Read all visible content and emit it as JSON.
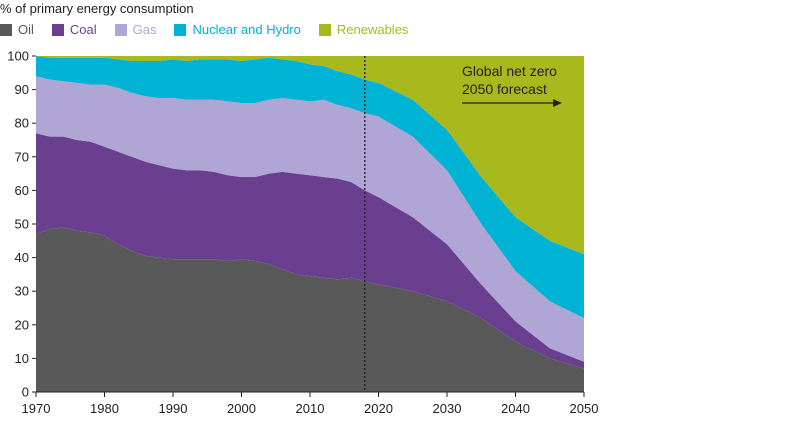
{
  "chart_data": {
    "type": "area",
    "stacked": true,
    "ylabel": "% of primary energy consumption",
    "xlim": [
      1970,
      2050
    ],
    "ylim": [
      0,
      100
    ],
    "xticks": [
      "1970",
      "1980",
      "1990",
      "2000",
      "2010",
      "2020",
      "2030",
      "2040",
      "2050"
    ],
    "yticks": [
      "0",
      "10",
      "20",
      "30",
      "40",
      "50",
      "60",
      "70",
      "80",
      "90",
      "100"
    ],
    "forecast_start": 2018,
    "annotation": [
      "Global net zero",
      "2050 forecast"
    ],
    "x": [
      1970,
      1972,
      1974,
      1976,
      1978,
      1980,
      1982,
      1984,
      1986,
      1988,
      1990,
      1992,
      1994,
      1996,
      1998,
      2000,
      2002,
      2004,
      2006,
      2008,
      2010,
      2012,
      2014,
      2016,
      2018,
      2020,
      2025,
      2030,
      2035,
      2040,
      2045,
      2050
    ],
    "series": [
      {
        "name": "Oil",
        "color": "#595959",
        "values": [
          47,
          48.5,
          49,
          48,
          47.5,
          46.5,
          44,
          42,
          40.5,
          40,
          39.5,
          39.5,
          39.5,
          39.5,
          39,
          39.5,
          39,
          38,
          36.5,
          35,
          34.5,
          34,
          33.5,
          34,
          33,
          32,
          30,
          27,
          22,
          15,
          10,
          7
        ]
      },
      {
        "name": "Coal",
        "color": "#6a3f8f",
        "values": [
          30,
          27.5,
          27,
          27,
          27,
          26.5,
          27.5,
          28,
          28,
          27.5,
          27,
          26.5,
          26.5,
          26,
          25.5,
          24.5,
          25,
          27,
          29,
          30,
          30,
          30,
          30,
          28.5,
          27,
          26,
          22,
          17,
          10,
          6,
          3,
          2
        ]
      },
      {
        "name": "Gas",
        "color": "#b0a6d6",
        "values": [
          17,
          17,
          16.5,
          17,
          17,
          18.5,
          19,
          19,
          19.5,
          20,
          21,
          21,
          21,
          21.5,
          22,
          22,
          22,
          22,
          22,
          22,
          22,
          23,
          22,
          22,
          23,
          24,
          24,
          22,
          18,
          15,
          14,
          13
        ]
      },
      {
        "name": "Nuclear and Hydro",
        "color": "#00b2d3",
        "values": [
          6,
          6.5,
          7,
          7.5,
          8,
          8,
          8.5,
          9.5,
          10.5,
          11,
          11.5,
          11.5,
          12,
          12,
          12.5,
          12.5,
          13,
          12.5,
          11.5,
          11.5,
          11,
          10,
          10,
          10,
          10,
          10,
          11,
          12,
          14,
          16,
          18,
          19
        ]
      },
      {
        "name": "Renewables",
        "color": "#a9b81c",
        "values": [
          0,
          0.5,
          0.5,
          0.5,
          0.5,
          0.5,
          1,
          1.5,
          1.5,
          1.5,
          1,
          1.5,
          1,
          1,
          1,
          1.5,
          1,
          0.5,
          1,
          1.5,
          2.5,
          3,
          4.5,
          5.5,
          7,
          8,
          13,
          22,
          36,
          48,
          55,
          59
        ]
      }
    ]
  }
}
